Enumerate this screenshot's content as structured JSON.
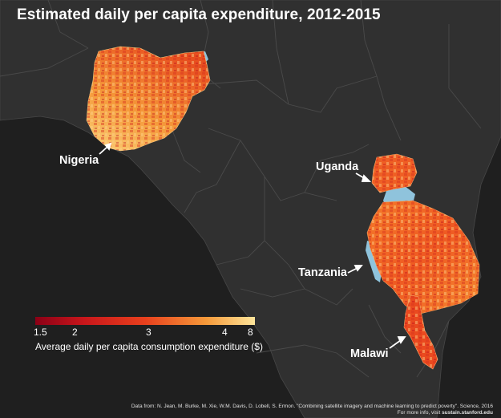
{
  "title": "Estimated daily per capita expenditure, 2012-2015",
  "labels": {
    "nigeria": "Nigeria",
    "uganda": "Uganda",
    "tanzania": "Tanzania",
    "malawi": "Malawi"
  },
  "legend": {
    "title": "Average daily per capita consumption expenditure ($)",
    "ticks": [
      "1.5",
      "2",
      "3",
      "4",
      "8"
    ],
    "colors": [
      "#8b0016",
      "#c8161b",
      "#e8401d",
      "#f59a3a",
      "#fde49a"
    ]
  },
  "credit": {
    "line1": "Data from: N. Jean, M. Burke, M. Xie, W.M. Davis, D. Lobell, S. Ermon. \"Combining satellite imagery and machine learning to predict poverty\". Science, 2016",
    "line2_prefix": "For more info, visit ",
    "line2_link": "sustain.stanford.edu"
  },
  "colors": {
    "ocean": "#1f1f1f",
    "land": "#2f2f2f",
    "borders": "#4a4a4a",
    "water": "#8fc3dc"
  }
}
